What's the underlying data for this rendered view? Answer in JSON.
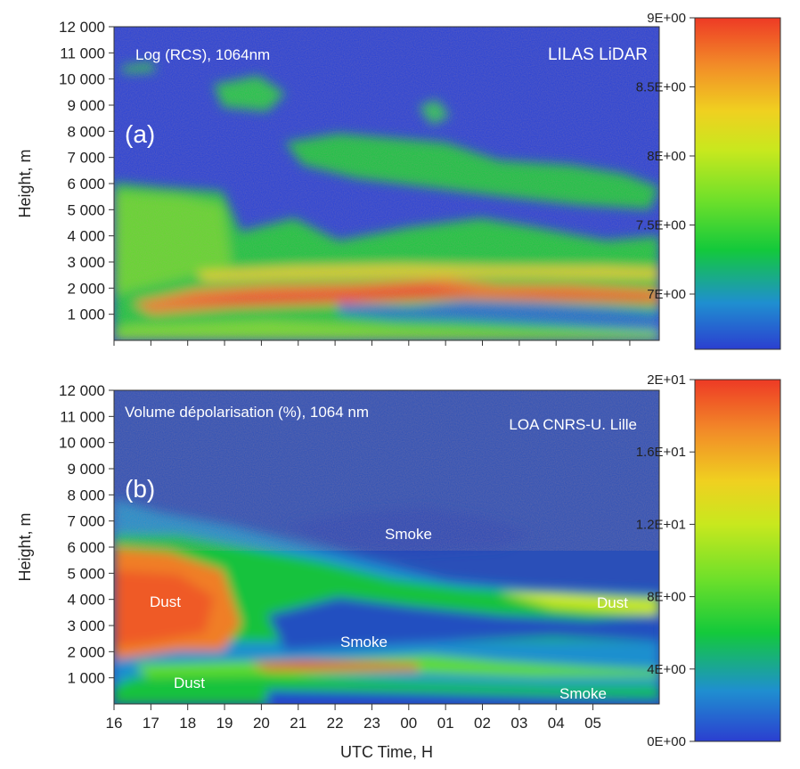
{
  "chart_data": [
    {
      "type": "heatmap",
      "panel_label": "(a)",
      "title": "Log (RCS), 1064nm",
      "source_label": "LILAS LiDAR",
      "ylabel": "Height, m",
      "xlabel": "",
      "ylim": [
        0,
        12000
      ],
      "y_ticks": [
        "1 000",
        "2 000",
        "3 000",
        "4 000",
        "5 000",
        "6 000",
        "7 000",
        "8 000",
        "9 000",
        "10 000",
        "11 000",
        "12 000"
      ],
      "x_ticks": [],
      "colorbar": {
        "ticks": [
          "9E+00",
          "8.5E+00",
          "8E+00",
          "7.5E+00",
          "7E+00"
        ],
        "range": [
          6.6,
          9.0
        ],
        "colors": [
          "#2b3fd0",
          "#1f8fd0",
          "#13c93b",
          "#6fe02a",
          "#c8e81e",
          "#f0d020",
          "#f28a28",
          "#ee3a25"
        ]
      },
      "annotations": []
    },
    {
      "type": "heatmap",
      "panel_label": "(b)",
      "title": "Volume dépolarisation (%), 1064 nm",
      "source_label": "LOA CNRS-U. Lille",
      "ylabel": "Height, m",
      "xlabel": "UTC Time, H",
      "ylim": [
        0,
        12000
      ],
      "y_ticks": [
        "1 000",
        "2 000",
        "3 000",
        "4 000",
        "5 000",
        "6 000",
        "7 000",
        "8 000",
        "9 000",
        "10 000",
        "11 000",
        "12 000"
      ],
      "x_ticks": [
        "16",
        "17",
        "18",
        "19",
        "20",
        "21",
        "22",
        "23",
        "00",
        "01",
        "02",
        "03",
        "04",
        "05"
      ],
      "colorbar": {
        "ticks": [
          "2E+01",
          "1.6E+01",
          "1.2E+01",
          "8E+00",
          "4E+00",
          "0E+00"
        ],
        "range": [
          0,
          20
        ],
        "colors": [
          "#2b3fd0",
          "#1f8fd0",
          "#13c93b",
          "#6fe02a",
          "#c8e81e",
          "#f0d020",
          "#f28a28",
          "#ee3a25"
        ]
      },
      "annotations": [
        "Smoke",
        "Dust",
        "Smoke",
        "Dust",
        "Dust",
        "Smoke"
      ]
    }
  ]
}
